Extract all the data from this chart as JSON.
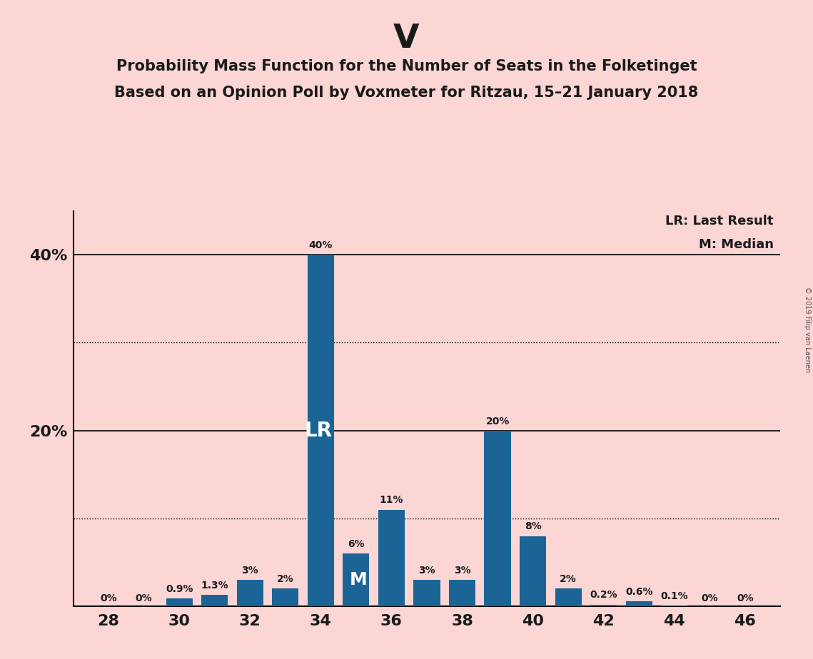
{
  "title_main": "V",
  "title_line1": "Probability Mass Function for the Number of Seats in the Folketinget",
  "title_line2": "Based on an Opinion Poll by Voxmeter for Ritzau, 15–21 January 2018",
  "copyright": "© 2019 Filip van Laenen",
  "background_color": "#fcd5d5",
  "bar_color": "#1a6496",
  "seats": [
    28,
    29,
    30,
    31,
    32,
    33,
    34,
    35,
    36,
    37,
    38,
    39,
    40,
    41,
    42,
    43,
    44,
    45,
    46
  ],
  "probabilities": [
    0.0,
    0.0,
    0.9,
    1.3,
    3.0,
    2.0,
    40.0,
    6.0,
    11.0,
    3.0,
    3.0,
    20.0,
    8.0,
    2.0,
    0.2,
    0.6,
    0.1,
    0.0,
    0.0
  ],
  "labels": [
    "0%",
    "0%",
    "0.9%",
    "1.3%",
    "3%",
    "2%",
    "40%",
    "6%",
    "11%",
    "3%",
    "3%",
    "20%",
    "8%",
    "2%",
    "0.2%",
    "0.6%",
    "0.1%",
    "0%",
    "0%"
  ],
  "LR_seat": 34,
  "M_seat": 35,
  "ylim": [
    0,
    45
  ],
  "xlim": [
    27,
    47
  ],
  "legend_LR": "LR: Last Result",
  "legend_M": "M: Median",
  "dotted_lines": [
    10,
    30
  ],
  "solid_lines": [
    20,
    40
  ]
}
